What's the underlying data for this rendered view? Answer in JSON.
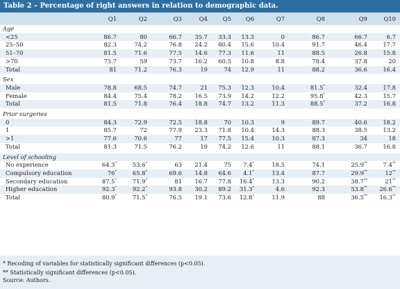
{
  "title": "Table 2 – Percentage of right answers in relation to demographic data.",
  "columns": [
    "Q1",
    "Q2",
    "Q3",
    "Q4",
    "Q5",
    "Q6",
    "Q7",
    "Q8",
    "Q9",
    "Q10"
  ],
  "groups": [
    {
      "name": "Age",
      "rows": [
        {
          "label": "<25",
          "cells": [
            "86.7",
            "80",
            "66.7",
            "35.7",
            "33.3",
            "13.3",
            "0",
            "86.7",
            "66.7",
            "6.7"
          ]
        },
        {
          "label": "25–50",
          "cells": [
            "82.3",
            "74.2",
            "76.8",
            "24.2",
            "80.4",
            "15.6",
            "10.4",
            "91.7",
            "46.4",
            "17.7"
          ]
        },
        {
          "label": "51–70",
          "cells": [
            "81.5",
            "71.6",
            "77.5",
            "14.6",
            "77.3",
            "11.6",
            "11",
            "88.5",
            "26.8",
            "15.8"
          ]
        },
        {
          "label": ">70",
          "cells": [
            "73.7",
            "59",
            "73.7",
            "16.2",
            "60.5",
            "10.8",
            "8.8",
            "78.4",
            "37.8",
            "20"
          ]
        },
        {
          "label": "Total",
          "cells": [
            "81",
            "71.2",
            "76.3",
            "19",
            "74",
            "12.9",
            "11",
            "88.2",
            "36.6",
            "16.4"
          ]
        }
      ]
    },
    {
      "name": "Sex",
      "rows": [
        {
          "label": "Male",
          "cells": [
            "78.8",
            "68.5",
            "74.7",
            "21",
            "75.3",
            "12.3",
            "10.4",
            "81.5*",
            "32.4",
            "17.8"
          ]
        },
        {
          "label": "Female",
          "cells": [
            "84.4",
            "75.4",
            "78.2",
            "16.5",
            "73.9",
            "14.2",
            "12.2",
            "95.8*",
            "42.3",
            "15.7"
          ]
        },
        {
          "label": "Total",
          "cells": [
            "81.5",
            "71.8",
            "76.4",
            "18.8",
            "74.7",
            "13.2",
            "11.3",
            "88.5*",
            "37.2",
            "16.8"
          ]
        }
      ]
    },
    {
      "name": "Prior surgeries",
      "rows": [
        {
          "label": "0",
          "cells": [
            "84.3",
            "72.9",
            "72.5",
            "18.8",
            "70",
            "10.3",
            "9",
            "89.7",
            "40.6",
            "18.2"
          ]
        },
        {
          "label": "1",
          "cells": [
            "85.7",
            "72",
            "77.9",
            "23.3",
            "71.8",
            "10.4",
            "14.3",
            "88.3",
            "38.5",
            "13.2"
          ]
        },
        {
          "label": ">1",
          "cells": [
            "77.6",
            "70.6",
            "77",
            "17",
            "77.5",
            "15.4",
            "10.3",
            "87.3",
            "34",
            "18"
          ]
        },
        {
          "label": "Total",
          "cells": [
            "81.3",
            "71.5",
            "76.2",
            "19",
            "74.2",
            "12.6",
            "11",
            "88.1",
            "36.7",
            "16.8"
          ]
        }
      ]
    },
    {
      "name": "Level of schooling",
      "rows": [
        {
          "label": "No experience",
          "cells": [
            "64.3*",
            "53.6*",
            "63",
            "21.4",
            "75",
            "7.4*",
            "18.5",
            "74.1",
            "25.9**",
            "7.4**"
          ]
        },
        {
          "label": "Compulsory education",
          "cells": [
            "76*",
            "65.8*",
            "69.6",
            "14.8",
            "64.6",
            "4.1*",
            "13.4",
            "87.7",
            "29.9**",
            "12**"
          ]
        },
        {
          "label": "Secondary education",
          "cells": [
            "87.5*",
            "71.9*",
            "81",
            "16.7",
            "77.8",
            "16.4*",
            "13.3",
            "90.2",
            "38.7**",
            "21**"
          ]
        },
        {
          "label": "Higher education",
          "cells": [
            "92.3*",
            "92.2*",
            "93.8",
            "30.2",
            "89.2",
            "31.3*",
            "4.6",
            "92.3",
            "53.8**",
            "26.6**"
          ]
        },
        {
          "label": "Total",
          "cells": [
            "80.9*",
            "71.5*",
            "76.5",
            "19.1",
            "73.6",
            "12.8*",
            "11.9",
            "88",
            "36.5**",
            "16.3**"
          ]
        }
      ]
    }
  ],
  "notes": {
    "note1": "*  Recoding of variables for statistically significant differences (p<0.05).",
    "note2": "** Statistically significant differences (p<0.05).",
    "source": "Source: Authors."
  }
}
